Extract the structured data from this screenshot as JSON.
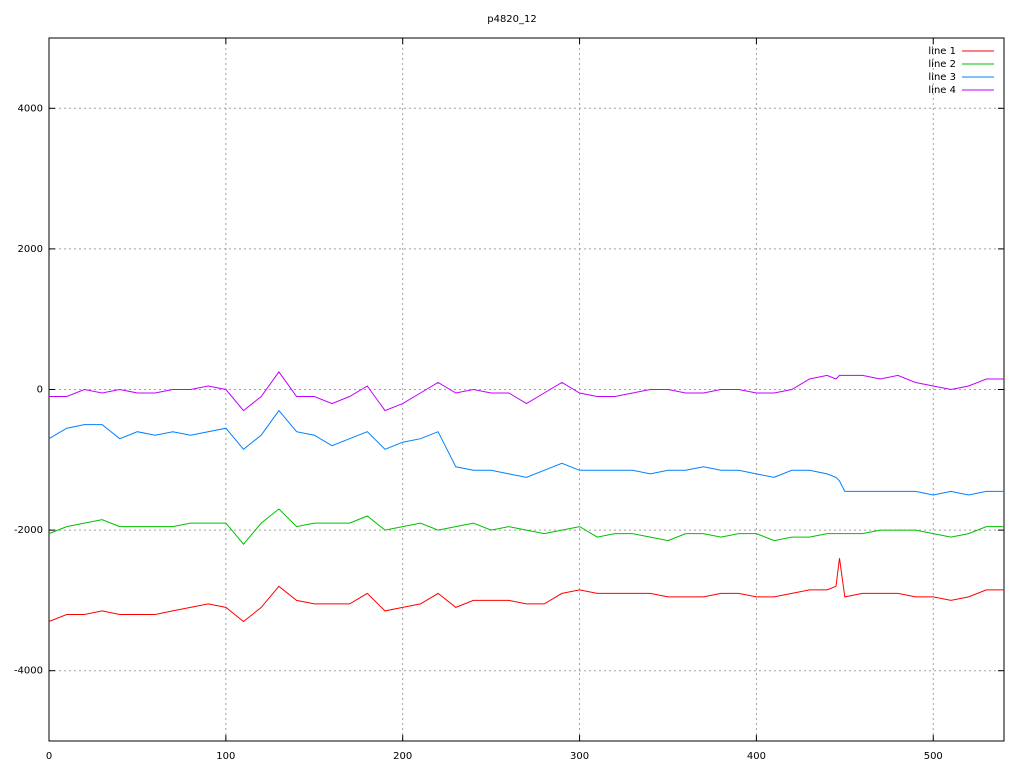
{
  "chart_data": {
    "type": "line",
    "title": "p4820_12",
    "x": [
      0,
      10,
      20,
      30,
      40,
      50,
      60,
      70,
      80,
      90,
      100,
      110,
      120,
      130,
      140,
      150,
      160,
      170,
      180,
      190,
      200,
      210,
      220,
      230,
      240,
      250,
      260,
      270,
      280,
      290,
      300,
      310,
      320,
      330,
      340,
      350,
      360,
      370,
      380,
      390,
      400,
      410,
      420,
      430,
      440,
      445,
      447,
      450,
      460,
      470,
      480,
      490,
      500,
      510,
      520,
      530,
      540
    ],
    "series": [
      {
        "name": "line 1",
        "color": "#ff0000",
        "values": [
          -3300,
          -3200,
          -3200,
          -3150,
          -3200,
          -3200,
          -3200,
          -3150,
          -3100,
          -3050,
          -3100,
          -3300,
          -3100,
          -2800,
          -3000,
          -3050,
          -3050,
          -3050,
          -2900,
          -3150,
          -3100,
          -3050,
          -2900,
          -3100,
          -3000,
          -3000,
          -3000,
          -3050,
          -3050,
          -2900,
          -2850,
          -2900,
          -2900,
          -2900,
          -2900,
          -2950,
          -2950,
          -2950,
          -2900,
          -2900,
          -2950,
          -2950,
          -2900,
          -2850,
          -2850,
          -2800,
          -2400,
          -2950,
          -2900,
          -2900,
          -2900,
          -2950,
          -2950,
          -3000,
          -2950,
          -2850,
          -2850
        ]
      },
      {
        "name": "line 2",
        "color": "#00c000",
        "values": [
          -2050,
          -1950,
          -1900,
          -1850,
          -1950,
          -1950,
          -1950,
          -1950,
          -1900,
          -1900,
          -1900,
          -2200,
          -1900,
          -1700,
          -1950,
          -1900,
          -1900,
          -1900,
          -1800,
          -2000,
          -1950,
          -1900,
          -2000,
          -1950,
          -1900,
          -2000,
          -1950,
          -2000,
          -2050,
          -2000,
          -1950,
          -2100,
          -2050,
          -2050,
          -2100,
          -2150,
          -2050,
          -2050,
          -2100,
          -2050,
          -2050,
          -2150,
          -2100,
          -2100,
          -2050,
          -2050,
          -2050,
          -2050,
          -2050,
          -2000,
          -2000,
          -2000,
          -2050,
          -2100,
          -2050,
          -1950,
          -1950
        ]
      },
      {
        "name": "line 3",
        "color": "#0080ff",
        "values": [
          -700,
          -550,
          -500,
          -500,
          -700,
          -600,
          -650,
          -600,
          -650,
          -600,
          -550,
          -850,
          -650,
          -300,
          -600,
          -650,
          -800,
          -700,
          -600,
          -850,
          -750,
          -700,
          -600,
          -1100,
          -1150,
          -1150,
          -1200,
          -1250,
          -1150,
          -1050,
          -1150,
          -1150,
          -1150,
          -1150,
          -1200,
          -1150,
          -1150,
          -1100,
          -1150,
          -1150,
          -1200,
          -1250,
          -1150,
          -1150,
          -1200,
          -1250,
          -1300,
          -1450,
          -1450,
          -1450,
          -1450,
          -1450,
          -1500,
          -1450,
          -1500,
          -1450,
          -1450
        ]
      },
      {
        "name": "line 4",
        "color": "#c000ff",
        "values": [
          -100,
          -100,
          0,
          -50,
          0,
          -50,
          -50,
          0,
          0,
          50,
          0,
          -300,
          -100,
          250,
          -100,
          -100,
          -200,
          -100,
          50,
          -300,
          -200,
          -50,
          100,
          -50,
          0,
          -50,
          -50,
          -200,
          -50,
          100,
          -50,
          -100,
          -100,
          -50,
          0,
          0,
          -50,
          -50,
          0,
          0,
          -50,
          -50,
          0,
          150,
          200,
          150,
          200,
          200,
          200,
          150,
          200,
          100,
          50,
          0,
          50,
          150,
          150
        ]
      }
    ],
    "xlim": [
      0,
      540
    ],
    "xticks": [
      0,
      100,
      200,
      300,
      400,
      500
    ],
    "ylim": [
      -5000,
      5000
    ],
    "yticks": [
      -4000,
      -2000,
      0,
      2000,
      4000
    ],
    "grid": true,
    "legend": "top-right"
  }
}
